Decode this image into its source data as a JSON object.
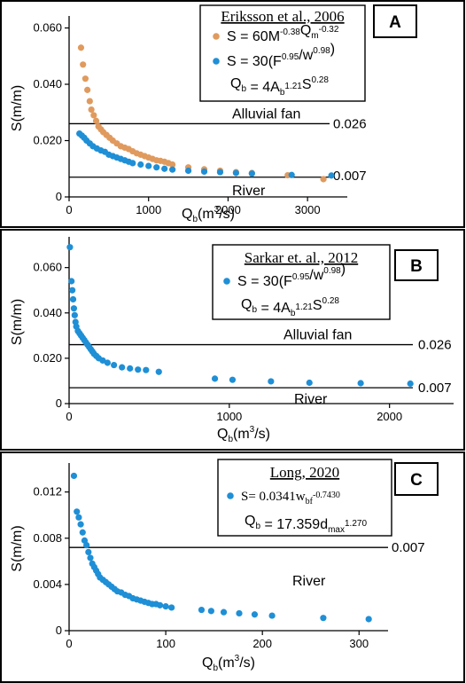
{
  "colors": {
    "blue": "#1f8fd6",
    "orange": "#e09a5e"
  },
  "chart_data": [
    {
      "panel": "A",
      "type": "scatter",
      "xlabel": "Q_b(m^3/s)",
      "ylabel": "S(m/m)",
      "xlim": [
        0,
        3500
      ],
      "ylim": [
        0,
        0.063
      ],
      "xticks": [
        0,
        1000,
        2000,
        3000
      ],
      "xtick_labels": [
        "0",
        "1000",
        "2000",
        "3000"
      ],
      "yticks": [
        0,
        0.02,
        0.04,
        0.06
      ],
      "ytick_labels": [
        "0",
        "0.020",
        "0.040",
        "0.060"
      ],
      "legend": {
        "title": "Eriksson et al., 2006",
        "entries": [
          {
            "color": "orange",
            "parts": [
              [
                "S = 60M",
                ""
              ],
              [
                "-0.38",
                "sup"
              ],
              [
                "Q",
                ""
              ],
              [
                "m",
                "sub"
              ],
              [
                "-0.32",
                "sup"
              ]
            ]
          },
          {
            "color": "blue",
            "parts": [
              [
                "S = 30(F",
                ""
              ],
              [
                "0.95",
                "sup"
              ],
              [
                "/w",
                ""
              ],
              [
                "0.98",
                "sup"
              ],
              [
                ")",
                ""
              ]
            ]
          }
        ],
        "extra": [
          [
            "Q",
            ""
          ],
          [
            "b",
            "sub"
          ],
          [
            " = 4A",
            ""
          ],
          [
            "b",
            "sub"
          ],
          [
            "1.21",
            "sup"
          ],
          [
            "S",
            ""
          ],
          [
            "0.28",
            "sup"
          ]
        ]
      },
      "ref_lines": [
        {
          "y": 0.026,
          "value_label": "0.026",
          "region_label": "Alluvial fan"
        },
        {
          "y": 0.007,
          "value_label": "0.007",
          "region_label": "River"
        }
      ],
      "series": [
        {
          "color": "orange",
          "points": [
            [
              150,
              0.053
            ],
            [
              175,
              0.047
            ],
            [
              205,
              0.042
            ],
            [
              230,
              0.038
            ],
            [
              260,
              0.034
            ],
            [
              280,
              0.031
            ],
            [
              310,
              0.029
            ],
            [
              340,
              0.027
            ],
            [
              370,
              0.025
            ],
            [
              400,
              0.024
            ],
            [
              430,
              0.023
            ],
            [
              470,
              0.022
            ],
            [
              510,
              0.021
            ],
            [
              550,
              0.02
            ],
            [
              600,
              0.019
            ],
            [
              650,
              0.018
            ],
            [
              700,
              0.0175
            ],
            [
              750,
              0.017
            ],
            [
              800,
              0.0162
            ],
            [
              850,
              0.0155
            ],
            [
              900,
              0.015
            ],
            [
              950,
              0.0145
            ],
            [
              1000,
              0.014
            ],
            [
              1050,
              0.0135
            ],
            [
              1100,
              0.013
            ],
            [
              1150,
              0.0128
            ],
            [
              1200,
              0.0125
            ],
            [
              1250,
              0.012
            ],
            [
              1300,
              0.0115
            ],
            [
              1500,
              0.0105
            ],
            [
              1700,
              0.0098
            ],
            [
              1900,
              0.0093
            ],
            [
              2100,
              0.0088
            ],
            [
              2300,
              0.0085
            ],
            [
              2750,
              0.0077
            ],
            [
              3200,
              0.0063
            ]
          ]
        },
        {
          "color": "blue",
          "points": [
            [
              130,
              0.0225
            ],
            [
              160,
              0.0218
            ],
            [
              190,
              0.021
            ],
            [
              220,
              0.02
            ],
            [
              260,
              0.019
            ],
            [
              300,
              0.018
            ],
            [
              350,
              0.0172
            ],
            [
              400,
              0.0165
            ],
            [
              450,
              0.016
            ],
            [
              500,
              0.015
            ],
            [
              550,
              0.0145
            ],
            [
              600,
              0.014
            ],
            [
              650,
              0.0135
            ],
            [
              700,
              0.013
            ],
            [
              750,
              0.0125
            ],
            [
              800,
              0.012
            ],
            [
              900,
              0.0115
            ],
            [
              1000,
              0.011
            ],
            [
              1100,
              0.0105
            ],
            [
              1200,
              0.01
            ],
            [
              1300,
              0.0097
            ],
            [
              1500,
              0.0093
            ],
            [
              1700,
              0.009
            ],
            [
              1900,
              0.0088
            ],
            [
              2100,
              0.0085
            ],
            [
              2300,
              0.0083
            ],
            [
              2800,
              0.0078
            ],
            [
              3300,
              0.0076
            ]
          ]
        }
      ]
    },
    {
      "panel": "B",
      "type": "scatter",
      "xlabel": "Q_b(m^3/s)",
      "ylabel": "S(m/m)",
      "xlim": [
        0,
        2400
      ],
      "ylim": [
        0,
        0.072
      ],
      "xticks": [
        0,
        1000,
        2000
      ],
      "xtick_labels": [
        "0",
        "1000",
        "2000"
      ],
      "yticks": [
        0,
        0.02,
        0.04,
        0.06
      ],
      "ytick_labels": [
        "0",
        "0.020",
        "0.040",
        "0.060"
      ],
      "legend": {
        "title": "Sarkar et. al., 2012",
        "entries": [
          {
            "color": "blue",
            "parts": [
              [
                "S = 30(F",
                ""
              ],
              [
                "0.95",
                "sup"
              ],
              [
                "/w",
                ""
              ],
              [
                "0.98",
                "sup"
              ],
              [
                ")",
                ""
              ]
            ]
          }
        ],
        "extra": [
          [
            "Q",
            ""
          ],
          [
            "b",
            "sub"
          ],
          [
            " = 4A",
            ""
          ],
          [
            "b",
            "sub"
          ],
          [
            "1.21",
            "sup"
          ],
          [
            "S",
            ""
          ],
          [
            "0.28",
            "sup"
          ]
        ]
      },
      "ref_lines": [
        {
          "y": 0.026,
          "value_label": "0.026",
          "region_label": "Alluvial fan"
        },
        {
          "y": 0.007,
          "value_label": "0.007",
          "region_label": "River"
        }
      ],
      "series": [
        {
          "color": "blue",
          "points": [
            [
              5,
              0.069
            ],
            [
              15,
              0.054
            ],
            [
              20,
              0.05
            ],
            [
              25,
              0.046
            ],
            [
              30,
              0.042
            ],
            [
              35,
              0.039
            ],
            [
              40,
              0.036
            ],
            [
              45,
              0.034
            ],
            [
              55,
              0.032
            ],
            [
              65,
              0.031
            ],
            [
              75,
              0.03
            ],
            [
              85,
              0.029
            ],
            [
              95,
              0.028
            ],
            [
              105,
              0.027
            ],
            [
              115,
              0.026
            ],
            [
              125,
              0.025
            ],
            [
              135,
              0.024
            ],
            [
              145,
              0.023
            ],
            [
              155,
              0.022
            ],
            [
              170,
              0.021
            ],
            [
              185,
              0.02
            ],
            [
              210,
              0.019
            ],
            [
              240,
              0.018
            ],
            [
              280,
              0.017
            ],
            [
              330,
              0.016
            ],
            [
              380,
              0.0155
            ],
            [
              430,
              0.015
            ],
            [
              480,
              0.0148
            ],
            [
              560,
              0.014
            ],
            [
              910,
              0.011
            ],
            [
              1020,
              0.0105
            ],
            [
              1260,
              0.0098
            ],
            [
              1500,
              0.0092
            ],
            [
              1820,
              0.009
            ],
            [
              2130,
              0.0088
            ]
          ]
        }
      ]
    },
    {
      "panel": "C",
      "type": "scatter",
      "xlabel": "Q_b(m^3/s)",
      "ylabel": "S(m/m)",
      "xlim": [
        0,
        330
      ],
      "ylim": [
        0,
        0.0142
      ],
      "xticks": [
        0,
        100,
        200,
        300
      ],
      "xtick_labels": [
        "0",
        "100",
        "200",
        "300"
      ],
      "yticks": [
        0,
        0.004,
        0.008,
        0.012
      ],
      "ytick_labels": [
        "0",
        "0.004",
        "0.008",
        "0.012"
      ],
      "legend": {
        "title": "Long, 2020",
        "entries": [
          {
            "color": "blue",
            "parts": [
              [
                "S= 0.0341w",
                ""
              ],
              [
                "bf",
                "sub"
              ],
              [
                "-0.7430",
                "sup"
              ]
            ]
          }
        ],
        "extra": [
          [
            "Q",
            ""
          ],
          [
            "b",
            "sub"
          ],
          [
            " = 17.359d",
            ""
          ],
          [
            "max",
            "sub"
          ],
          [
            "1.270",
            "sup"
          ]
        ]
      },
      "ref_lines": [
        {
          "y": 0.0072,
          "value_label": "0.007",
          "region_label": ""
        }
      ],
      "region_labels": [
        {
          "text": "River"
        }
      ],
      "series": [
        {
          "color": "blue",
          "points": [
            [
              5,
              0.0134
            ],
            [
              8,
              0.0103
            ],
            [
              10,
              0.0098
            ],
            [
              12,
              0.0092
            ],
            [
              14,
              0.0085
            ],
            [
              16,
              0.0078
            ],
            [
              18,
              0.0074
            ],
            [
              20,
              0.0068
            ],
            [
              22,
              0.0063
            ],
            [
              24,
              0.0058
            ],
            [
              26,
              0.0055
            ],
            [
              28,
              0.0052
            ],
            [
              30,
              0.0049
            ],
            [
              32,
              0.0046
            ],
            [
              35,
              0.0044
            ],
            [
              38,
              0.0042
            ],
            [
              41,
              0.004
            ],
            [
              44,
              0.0038
            ],
            [
              47,
              0.0036
            ],
            [
              50,
              0.0034
            ],
            [
              54,
              0.0033
            ],
            [
              58,
              0.0031
            ],
            [
              62,
              0.003
            ],
            [
              66,
              0.0028
            ],
            [
              70,
              0.0027
            ],
            [
              74,
              0.0026
            ],
            [
              78,
              0.0025
            ],
            [
              82,
              0.0024
            ],
            [
              86,
              0.0023
            ],
            [
              90,
              0.0023
            ],
            [
              94,
              0.0022
            ],
            [
              100,
              0.0021
            ],
            [
              106,
              0.002
            ],
            [
              137,
              0.0018
            ],
            [
              147,
              0.0017
            ],
            [
              160,
              0.0016
            ],
            [
              176,
              0.0015
            ],
            [
              192,
              0.0014
            ],
            [
              210,
              0.0013
            ],
            [
              263,
              0.0011
            ],
            [
              310,
              0.001
            ]
          ]
        }
      ]
    }
  ]
}
